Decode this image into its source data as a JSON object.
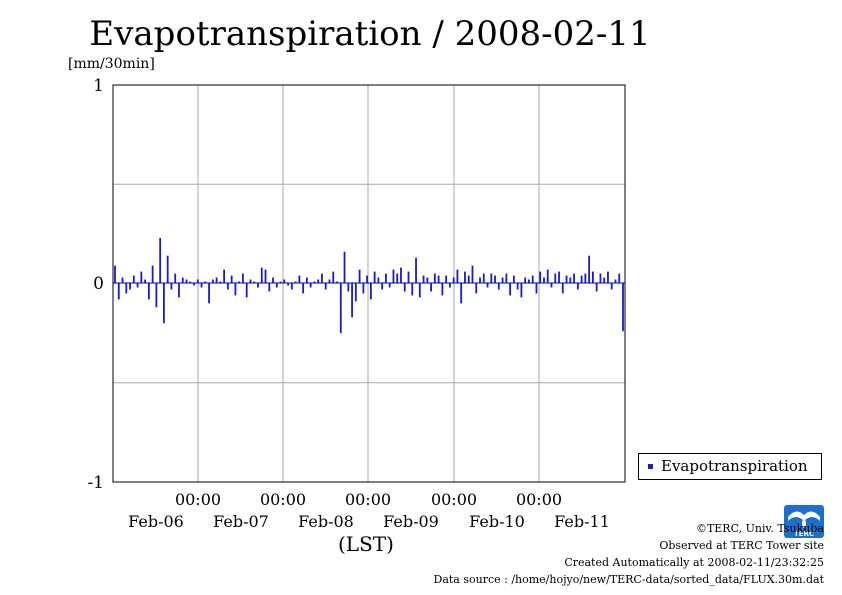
{
  "chart_data": {
    "type": "bar",
    "title": "Evapotranspiration / 2008-02-11",
    "unit_label": "[mm/30min]",
    "ylim": [
      -1,
      1
    ],
    "y_ticks": [
      "1",
      "0",
      "-1"
    ],
    "x_time_ticks": [
      "00:00",
      "00:00",
      "00:00",
      "00:00",
      "00:00"
    ],
    "x_date_labels": [
      "Feb-06",
      "Feb-07",
      "Feb-08",
      "Feb-09",
      "Feb-10",
      "Feb-11"
    ],
    "xlabel": "(LST)",
    "grid": true,
    "legend_position": "right",
    "series": [
      {
        "name": "Evapotranspiration",
        "color": "#1a1acc",
        "interval": "30min",
        "values": [
          0.09,
          -0.08,
          0.03,
          -0.05,
          -0.03,
          0.04,
          -0.02,
          0.06,
          0.02,
          -0.08,
          0.09,
          -0.12,
          0.23,
          -0.2,
          0.14,
          -0.03,
          0.05,
          -0.07,
          0.03,
          0.02,
          0.01,
          -0.01,
          0.02,
          -0.02,
          0.01,
          -0.1,
          0.02,
          0.03,
          0.01,
          0.07,
          -0.03,
          0.04,
          -0.06,
          0.01,
          0.05,
          -0.07,
          0.02,
          0.01,
          -0.02,
          0.08,
          0.07,
          -0.04,
          0.03,
          -0.02,
          0.01,
          0.02,
          -0.01,
          -0.03,
          0.01,
          0.04,
          -0.05,
          0.03,
          -0.02,
          0.01,
          0.02,
          0.05,
          -0.03,
          0.02,
          0.06,
          0.01,
          -0.25,
          0.16,
          -0.04,
          -0.17,
          -0.09,
          0.07,
          -0.05,
          0.04,
          -0.08,
          0.06,
          0.03,
          -0.03,
          0.05,
          -0.02,
          0.07,
          0.05,
          0.08,
          -0.04,
          0.06,
          -0.06,
          0.13,
          -0.07,
          0.04,
          0.03,
          -0.04,
          0.05,
          0.04,
          -0.06,
          0.04,
          -0.02,
          0.03,
          0.07,
          -0.1,
          0.06,
          0.04,
          0.09,
          -0.05,
          0.03,
          0.05,
          -0.02,
          0.05,
          0.04,
          -0.03,
          0.03,
          0.05,
          -0.06,
          0.04,
          -0.03,
          -0.07,
          0.03,
          0.02,
          0.04,
          -0.05,
          0.06,
          0.03,
          0.07,
          -0.02,
          0.05,
          0.06,
          -0.05,
          0.04,
          0.03,
          0.05,
          -0.03,
          0.04,
          0.05,
          0.14,
          0.06,
          -0.04,
          0.05,
          0.03,
          0.06,
          -0.03,
          0.02,
          0.05,
          -0.24
        ]
      }
    ]
  },
  "legend": {
    "label": "Evapotranspiration"
  },
  "footer": {
    "copyright": "©TERC, Univ. Tsukuba",
    "site": "Observed at TERC Tower site",
    "created": "Created Automatically at 2008-02-11/23:32:25",
    "source": "Data source : /home/hojyo/new/TERC-data/sorted_data/FLUX.30m.dat"
  },
  "logo": {
    "text": "TERC"
  }
}
